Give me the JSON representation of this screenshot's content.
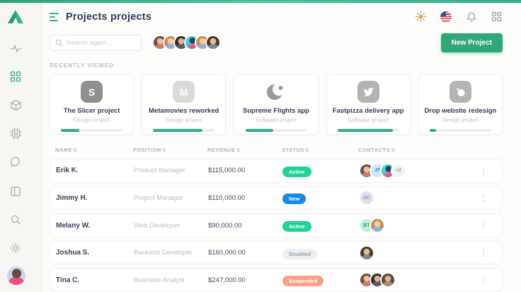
{
  "header": {
    "title": "Projects projects",
    "new_project_label": "New Project",
    "icons": [
      "sun-icon",
      "us-flag-icon",
      "bell-icon",
      "apps-icon"
    ]
  },
  "search": {
    "placeholder": "Search again..."
  },
  "team_avatars": {
    "count": 6
  },
  "sidebar": {
    "icons": [
      "logo-icon",
      "activity-icon",
      "apps-grid-icon",
      "cube-icon",
      "chip-icon",
      "chat-icon",
      "reader-icon",
      "search-icon",
      "settings-icon",
      "user-avatar"
    ],
    "active_icon": "apps-grid-icon"
  },
  "recently_viewed": {
    "label": "RECENTLY VIEWED",
    "cards": [
      {
        "title": "The Slicer project",
        "subtitle": "Design project",
        "progress": 30,
        "icon": "s-letter-icon",
        "icon_text": "S"
      },
      {
        "title": "Metamovies reworked",
        "subtitle": "Design project",
        "progress": 80,
        "icon": "m-letter-icon",
        "icon_text": "M"
      },
      {
        "title": "Supreme Flights app",
        "subtitle": "Software project",
        "progress": 45,
        "icon": "moon-icon"
      },
      {
        "title": "Fastpizza delivery app",
        "subtitle": "Software project",
        "progress": 90,
        "icon": "bird-icon"
      },
      {
        "title": "Drop website redesign",
        "subtitle": "Design project",
        "progress": 10,
        "icon": "bomb-icon"
      }
    ]
  },
  "table": {
    "sort_glyph": "⇅",
    "columns": [
      {
        "label": "NAME"
      },
      {
        "label": "POSITION"
      },
      {
        "label": "REVENUE"
      },
      {
        "label": "STATUS"
      },
      {
        "label": "CONTACTS"
      }
    ],
    "rows": [
      {
        "name": "Erik K.",
        "position": "Product Manager",
        "revenue": "$115,000.00",
        "status": "Active",
        "status_type": "active",
        "contacts": [
          {
            "type": "photo",
            "variant": 1
          },
          {
            "type": "initials",
            "label": "JF",
            "style": "blue"
          },
          {
            "type": "photo",
            "variant": 4
          },
          {
            "type": "more",
            "label": "+2"
          }
        ]
      },
      {
        "name": "Jimmy H.",
        "position": "Project Manager",
        "revenue": "$110,000.00",
        "status": "New",
        "status_type": "new",
        "contacts": [
          {
            "type": "initials",
            "label": "SC",
            "style": "purple"
          }
        ]
      },
      {
        "name": "Melany W.",
        "position": "Web Developer",
        "revenue": "$90,000.00",
        "status": "Active",
        "status_type": "active",
        "contacts": [
          {
            "type": "initials",
            "label": "BT",
            "style": "green"
          },
          {
            "type": "photo",
            "variant": 2
          }
        ]
      },
      {
        "name": "Joshua S.",
        "position": "Backend Developer",
        "revenue": "$160,000.00",
        "status": "Disabled",
        "status_type": "disabled",
        "contacts": [
          {
            "type": "photo",
            "variant": 5
          }
        ]
      },
      {
        "name": "Tina C.",
        "position": "Business Analyst",
        "revenue": "$247,000.00",
        "status": "Suspended",
        "status_type": "suspended",
        "contacts": [
          {
            "type": "photo",
            "variant": 1
          },
          {
            "type": "photo",
            "variant": 3
          },
          {
            "type": "photo",
            "variant": 6
          }
        ]
      }
    ]
  },
  "colors": {
    "accent_green": "#2fa878",
    "topbar_gradient": [
      "#2ba37c",
      "#43c597",
      "#2fae85"
    ],
    "status_active": "#21d294",
    "status_new": "#1489e8",
    "status_disabled_bg": "#edf0f2",
    "status_suspended": "#f8a288",
    "progress_fill": "#2fae7f",
    "title_text": "#2e3a58",
    "sun": "#f6a83c"
  }
}
